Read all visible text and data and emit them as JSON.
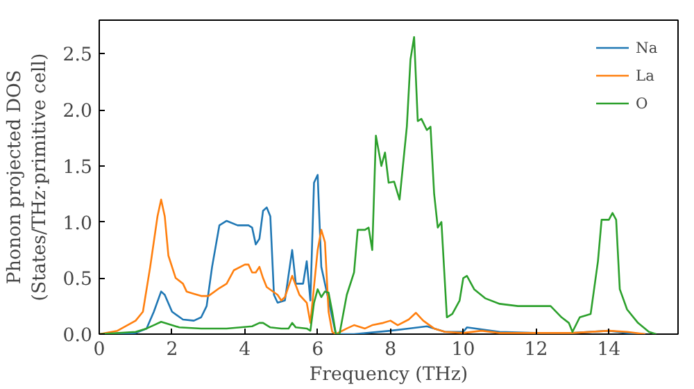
{
  "chart_data": {
    "type": "line",
    "xlabel": "Frequency (THz)",
    "ylabel": "Phonon projected DOS\n(States/THz·primitive cell)",
    "xlim": [
      0,
      15.9
    ],
    "ylim": [
      0,
      2.8
    ],
    "xticks": [
      0,
      2,
      4,
      6,
      8,
      10,
      12,
      14
    ],
    "yticks": [
      {
        "value": 0,
        "label": "0.0"
      },
      0.5,
      {
        "value": 1,
        "label": "1.0"
      },
      1.5,
      {
        "value": 2,
        "label": "2.0"
      },
      2.5
    ],
    "legend": "top right",
    "grid": false,
    "series": [
      {
        "name": "Na",
        "color": "#1f77b4",
        "x": [
          0,
          0.5,
          1,
          1.3,
          1.5,
          1.7,
          1.8,
          2.0,
          2.3,
          2.6,
          2.8,
          2.95,
          3.1,
          3.3,
          3.5,
          3.8,
          4.1,
          4.2,
          4.3,
          4.4,
          4.5,
          4.6,
          4.7,
          4.8,
          4.9,
          5.1,
          5.3,
          5.4,
          5.6,
          5.7,
          5.8,
          5.9,
          6.0,
          6.1,
          6.3,
          6.5,
          7,
          8,
          8.5,
          9,
          9.5,
          10,
          10.1,
          11,
          12,
          13,
          14,
          14.5,
          15
        ],
        "values": [
          0,
          0,
          0.01,
          0.05,
          0.2,
          0.38,
          0.35,
          0.2,
          0.13,
          0.12,
          0.15,
          0.25,
          0.6,
          0.97,
          1.01,
          0.97,
          0.97,
          0.95,
          0.8,
          0.85,
          1.1,
          1.13,
          1.05,
          0.35,
          0.28,
          0.3,
          0.75,
          0.45,
          0.45,
          0.65,
          0.3,
          1.35,
          1.42,
          0.6,
          0.3,
          0,
          0,
          0.03,
          0.05,
          0.07,
          0.02,
          0.02,
          0.06,
          0.02,
          0.01,
          0.01,
          0.03,
          0.01,
          0
        ]
      },
      {
        "name": "La",
        "color": "#ff7f0e",
        "x": [
          0,
          0.5,
          1,
          1.2,
          1.4,
          1.6,
          1.7,
          1.8,
          1.9,
          2.1,
          2.3,
          2.4,
          2.6,
          2.8,
          3.0,
          3.3,
          3.5,
          3.7,
          4.0,
          4.1,
          4.2,
          4.3,
          4.4,
          4.5,
          4.6,
          4.9,
          5.0,
          5.1,
          5.3,
          5.5,
          5.7,
          5.8,
          6.0,
          6.1,
          6.2,
          6.3,
          6.4,
          6.5,
          6.8,
          7.0,
          7.3,
          7.5,
          7.8,
          8.0,
          8.2,
          8.5,
          8.7,
          8.9,
          9.2,
          9.5,
          10,
          10.5,
          11,
          12,
          13,
          14,
          14.5,
          15
        ],
        "values": [
          0,
          0.03,
          0.12,
          0.2,
          0.6,
          1.05,
          1.2,
          1.05,
          0.7,
          0.5,
          0.45,
          0.38,
          0.36,
          0.34,
          0.34,
          0.41,
          0.45,
          0.57,
          0.62,
          0.62,
          0.55,
          0.55,
          0.6,
          0.5,
          0.42,
          0.35,
          0.3,
          0.33,
          0.52,
          0.35,
          0.28,
          0.1,
          0.75,
          0.93,
          0.82,
          0.2,
          0.02,
          0,
          0.05,
          0.08,
          0.05,
          0.08,
          0.1,
          0.12,
          0.08,
          0.13,
          0.19,
          0.12,
          0.05,
          0.02,
          0.01,
          0.03,
          0.01,
          0.01,
          0.01,
          0.03,
          0.02,
          0
        ]
      },
      {
        "name": "O",
        "color": "#2ca02c",
        "x": [
          0,
          1,
          1.3,
          1.5,
          1.7,
          1.9,
          2.2,
          2.8,
          3.5,
          4.2,
          4.4,
          4.5,
          4.7,
          5.0,
          5.2,
          5.3,
          5.4,
          5.7,
          5.8,
          5.9,
          6.0,
          6.1,
          6.2,
          6.3,
          6.4,
          6.5,
          6.6,
          6.8,
          7.0,
          7.1,
          7.3,
          7.4,
          7.5,
          7.6,
          7.75,
          7.85,
          7.95,
          8.1,
          8.25,
          8.45,
          8.55,
          8.65,
          8.75,
          8.85,
          9.0,
          9.1,
          9.2,
          9.3,
          9.4,
          9.55,
          9.7,
          9.9,
          10.0,
          10.1,
          10.3,
          10.6,
          11,
          11.5,
          12.2,
          12.4,
          12.7,
          12.9,
          13.0,
          13.2,
          13.5,
          13.7,
          13.8,
          14.0,
          14.1,
          14.2,
          14.3,
          14.5,
          14.8,
          15.1,
          15.3
        ],
        "values": [
          0,
          0.02,
          0.05,
          0.08,
          0.11,
          0.09,
          0.06,
          0.05,
          0.05,
          0.07,
          0.1,
          0.1,
          0.06,
          0.05,
          0.05,
          0.1,
          0.06,
          0.05,
          0.03,
          0.28,
          0.4,
          0.33,
          0.38,
          0.37,
          0.2,
          0,
          0,
          0.35,
          0.55,
          0.93,
          0.93,
          0.95,
          0.75,
          1.77,
          1.5,
          1.62,
          1.35,
          1.36,
          1.2,
          1.85,
          2.45,
          2.65,
          1.9,
          1.92,
          1.82,
          1.85,
          1.25,
          0.95,
          1.0,
          0.15,
          0.18,
          0.3,
          0.5,
          0.52,
          0.4,
          0.32,
          0.27,
          0.25,
          0.25,
          0.25,
          0.15,
          0.1,
          0.02,
          0.15,
          0.18,
          0.65,
          1.02,
          1.02,
          1.08,
          1.02,
          0.4,
          0.22,
          0.1,
          0.02,
          0
        ]
      }
    ]
  }
}
